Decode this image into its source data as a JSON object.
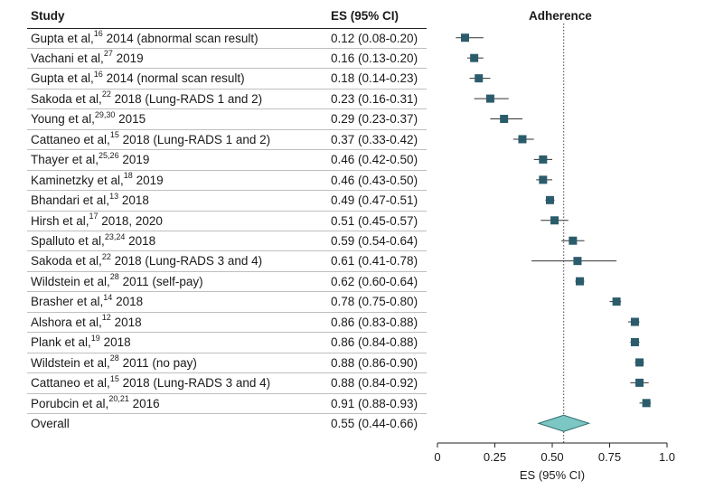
{
  "headers": {
    "study": "Study",
    "es": "ES (95% CI)",
    "plot": "Adherence"
  },
  "rows": [
    {
      "author": "Gupta et al,",
      "ref": "16",
      "rest": " 2014 (abnormal scan result)",
      "es_text": "0.12 (0.08-0.20)"
    },
    {
      "author": "Vachani et al,",
      "ref": "27",
      "rest": " 2019",
      "es_text": "0.16 (0.13-0.20)"
    },
    {
      "author": "Gupta et al,",
      "ref": "16",
      "rest": " 2014 (normal scan result)",
      "es_text": "0.18 (0.14-0.23)"
    },
    {
      "author": "Sakoda et al,",
      "ref": "22",
      "rest": " 2018 (Lung-RADS 1 and 2)",
      "es_text": "0.23 (0.16-0.31)"
    },
    {
      "author": "Young et al,",
      "ref": "29,30",
      "rest": " 2015",
      "es_text": "0.29 (0.23-0.37)"
    },
    {
      "author": "Cattaneo et al,",
      "ref": "15",
      "rest": " 2018 (Lung-RADS 1 and 2)",
      "es_text": "0.37 (0.33-0.42)"
    },
    {
      "author": "Thayer et al,",
      "ref": "25,26",
      "rest": " 2019",
      "es_text": "0.46 (0.42-0.50)"
    },
    {
      "author": "Kaminetzky et al,",
      "ref": "18",
      "rest": " 2019",
      "es_text": "0.46 (0.43-0.50)"
    },
    {
      "author": "Bhandari et al,",
      "ref": "13",
      "rest": " 2018",
      "es_text": "0.49 (0.47-0.51)"
    },
    {
      "author": "Hirsh et al,",
      "ref": "17",
      "rest": " 2018, 2020",
      "es_text": "0.51 (0.45-0.57)"
    },
    {
      "author": "Spalluto et al,",
      "ref": "23,24",
      "rest": " 2018",
      "es_text": "0.59 (0.54-0.64)"
    },
    {
      "author": "Sakoda et al,",
      "ref": "22",
      "rest": " 2018 (Lung-RADS 3 and 4)",
      "es_text": "0.61 (0.41-0.78)"
    },
    {
      "author": "Wildstein et al,",
      "ref": "28",
      "rest": " 2011 (self-pay)",
      "es_text": "0.62 (0.60-0.64)"
    },
    {
      "author": "Brasher et al,",
      "ref": "14",
      "rest": " 2018",
      "es_text": "0.78 (0.75-0.80)"
    },
    {
      "author": "Alshora et al,",
      "ref": "12",
      "rest": " 2018",
      "es_text": "0.86 (0.83-0.88)"
    },
    {
      "author": "Plank et al,",
      "ref": "19",
      "rest": " 2018",
      "es_text": "0.86 (0.84-0.88)"
    },
    {
      "author": "Wildstein et al,",
      "ref": "28",
      "rest": " 2011 (no pay)",
      "es_text": "0.88 (0.86-0.90)"
    },
    {
      "author": "Cattaneo et al,",
      "ref": "15",
      "rest": " 2018 (Lung-RADS 3 and 4)",
      "es_text": "0.88 (0.84-0.92)"
    },
    {
      "author": "Porubcin et al,",
      "ref": "20,21",
      "rest": " 2016",
      "es_text": "0.91 (0.88-0.93)"
    }
  ],
  "overall": {
    "label": "Overall",
    "es_text": "0.55 (0.44-0.66)"
  },
  "chart_data": {
    "type": "forest",
    "title": "Adherence",
    "xlabel": "ES (95% CI)",
    "xlim": [
      0,
      1.0
    ],
    "xticks": [
      0,
      0.25,
      0.5,
      0.75,
      1.0
    ],
    "xtick_labels": [
      "0",
      "0.25",
      "0.50",
      "0.75",
      "1.0"
    ],
    "reference_line": 0.55,
    "estimates": [
      0.12,
      0.16,
      0.18,
      0.23,
      0.29,
      0.37,
      0.46,
      0.46,
      0.49,
      0.51,
      0.59,
      0.61,
      0.62,
      0.78,
      0.86,
      0.86,
      0.88,
      0.88,
      0.91
    ],
    "ci_low": [
      0.08,
      0.13,
      0.14,
      0.16,
      0.23,
      0.33,
      0.42,
      0.43,
      0.47,
      0.45,
      0.54,
      0.41,
      0.6,
      0.75,
      0.83,
      0.84,
      0.86,
      0.84,
      0.88
    ],
    "ci_high": [
      0.2,
      0.2,
      0.23,
      0.31,
      0.37,
      0.42,
      0.5,
      0.5,
      0.51,
      0.57,
      0.64,
      0.78,
      0.64,
      0.8,
      0.88,
      0.88,
      0.9,
      0.92,
      0.93
    ],
    "overall": {
      "estimate": 0.55,
      "ci_low": 0.44,
      "ci_high": 0.66
    },
    "marker_color": "#2b5c6b",
    "diamond_color": "#7cc6c4"
  }
}
